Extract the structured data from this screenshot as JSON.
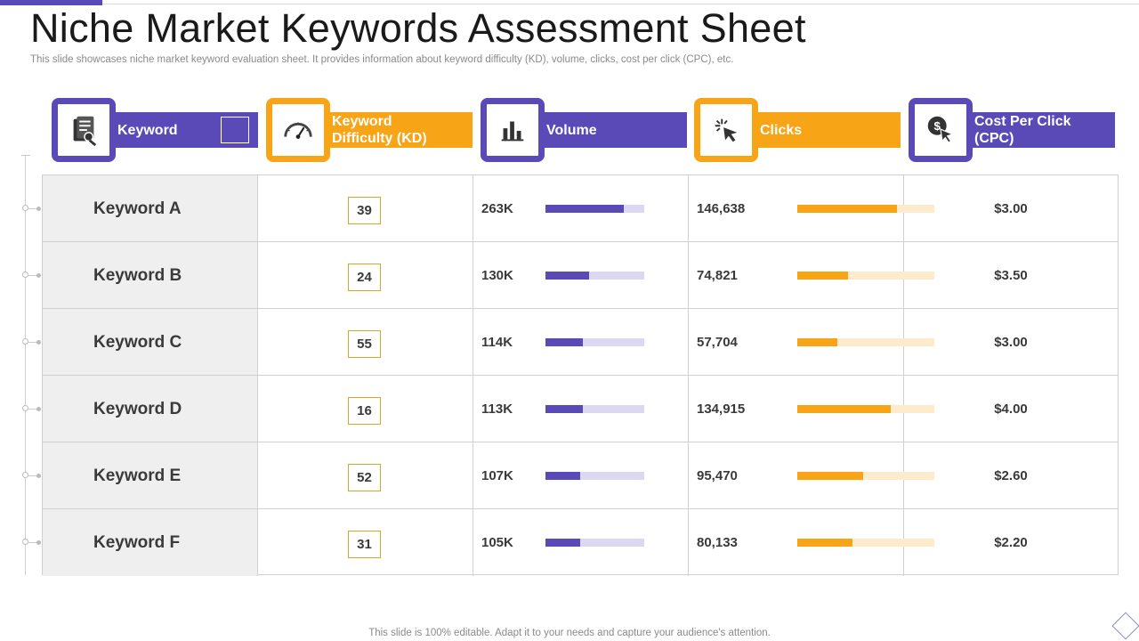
{
  "title": "Niche Market Keywords Assessment Sheet",
  "subtitle": "This slide showcases niche market keyword evaluation sheet. It provides information about keyword difficulty (KD), volume, clicks, cost per click (CPC), etc.",
  "colors": {
    "purple": "#5a4ab8",
    "orange": "#f7a517"
  },
  "headers": [
    {
      "label": "Keyword",
      "icon": "keyword-document-icon",
      "color": "purple"
    },
    {
      "label": "Keyword Difficulty (KD)",
      "icon": "speedometer-icon",
      "color": "orange"
    },
    {
      "label": "Volume",
      "icon": "bar-chart-icon",
      "color": "purple"
    },
    {
      "label": "Clicks",
      "icon": "cursor-click-icon",
      "color": "orange"
    },
    {
      "label": "Cost Per Click (CPC)",
      "icon": "dollar-cursor-icon",
      "color": "purple"
    }
  ],
  "rows": [
    {
      "keyword": "Keyword A",
      "kd": "39",
      "volume": "263K",
      "volume_level": 0.79,
      "clicks": "146,638",
      "clicks_level": 0.73,
      "cpc": "$3.00"
    },
    {
      "keyword": "Keyword B",
      "kd": "24",
      "volume": "130K",
      "volume_level": 0.44,
      "clicks": "74,821",
      "clicks_level": 0.37,
      "cpc": "$3.50"
    },
    {
      "keyword": "Keyword C",
      "kd": "55",
      "volume": "114K",
      "volume_level": 0.38,
      "clicks": "57,704",
      "clicks_level": 0.29,
      "cpc": "$3.00"
    },
    {
      "keyword": "Keyword D",
      "kd": "16",
      "volume": "113K",
      "volume_level": 0.38,
      "clicks": "134,915",
      "clicks_level": 0.68,
      "cpc": "$4.00"
    },
    {
      "keyword": "Keyword E",
      "kd": "52",
      "volume": "107K",
      "volume_level": 0.35,
      "clicks": "95,470",
      "clicks_level": 0.48,
      "cpc": "$2.60"
    },
    {
      "keyword": "Keyword F",
      "kd": "31",
      "volume": "105K",
      "volume_level": 0.35,
      "clicks": "80,133",
      "clicks_level": 0.4,
      "cpc": "$2.20"
    }
  ],
  "footer": "This slide is 100% editable. Adapt it to your needs and capture your audience's attention."
}
